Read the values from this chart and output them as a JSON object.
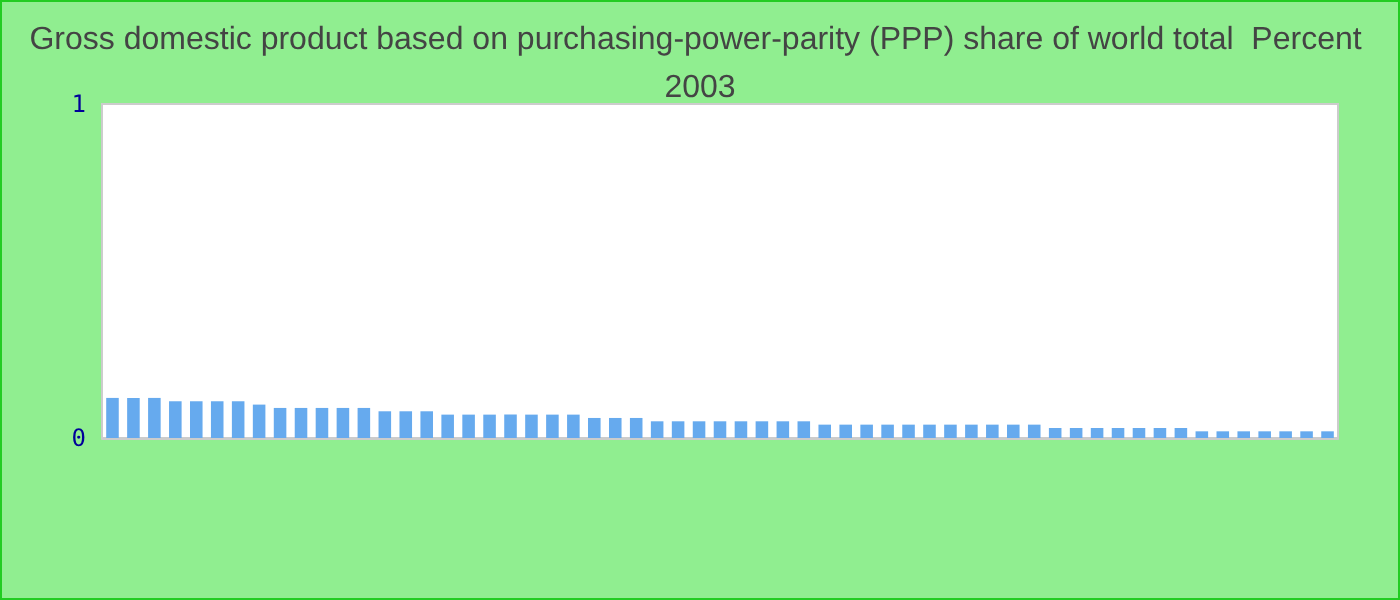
{
  "chart_data": {
    "type": "bar",
    "title": "Gross domestic product based on purchasing-power-parity (PPP) share of world total  Percent 2003",
    "categories": [
      null,
      null,
      null,
      null,
      null,
      null,
      null,
      null,
      null,
      null,
      null,
      null,
      null,
      null,
      null,
      null,
      null,
      null,
      null,
      null,
      null,
      null,
      null,
      null,
      null,
      null,
      null,
      null,
      null,
      null,
      null,
      null,
      null,
      null,
      null,
      null,
      null,
      null,
      null,
      null,
      null,
      null,
      null,
      null,
      null,
      null,
      null,
      null,
      null,
      null,
      null,
      null,
      null,
      null,
      null,
      null,
      null,
      null,
      null
    ],
    "values": [
      0.12,
      0.12,
      0.12,
      0.11,
      0.11,
      0.11,
      0.11,
      0.1,
      0.09,
      0.09,
      0.09,
      0.09,
      0.09,
      0.08,
      0.08,
      0.08,
      0.07,
      0.07,
      0.07,
      0.07,
      0.07,
      0.07,
      0.07,
      0.06,
      0.06,
      0.06,
      0.05,
      0.05,
      0.05,
      0.05,
      0.05,
      0.05,
      0.05,
      0.05,
      0.04,
      0.04,
      0.04,
      0.04,
      0.04,
      0.04,
      0.04,
      0.04,
      0.04,
      0.04,
      0.04,
      0.03,
      0.03,
      0.03,
      0.03,
      0.03,
      0.03,
      0.03,
      0.02,
      0.02,
      0.02,
      0.02,
      0.02,
      0.02,
      0.02
    ],
    "color": "#66aaee",
    "ylim": [
      0,
      1
    ],
    "yticks": [
      0,
      1
    ],
    "grid": false,
    "tick_labels": "y"
  }
}
